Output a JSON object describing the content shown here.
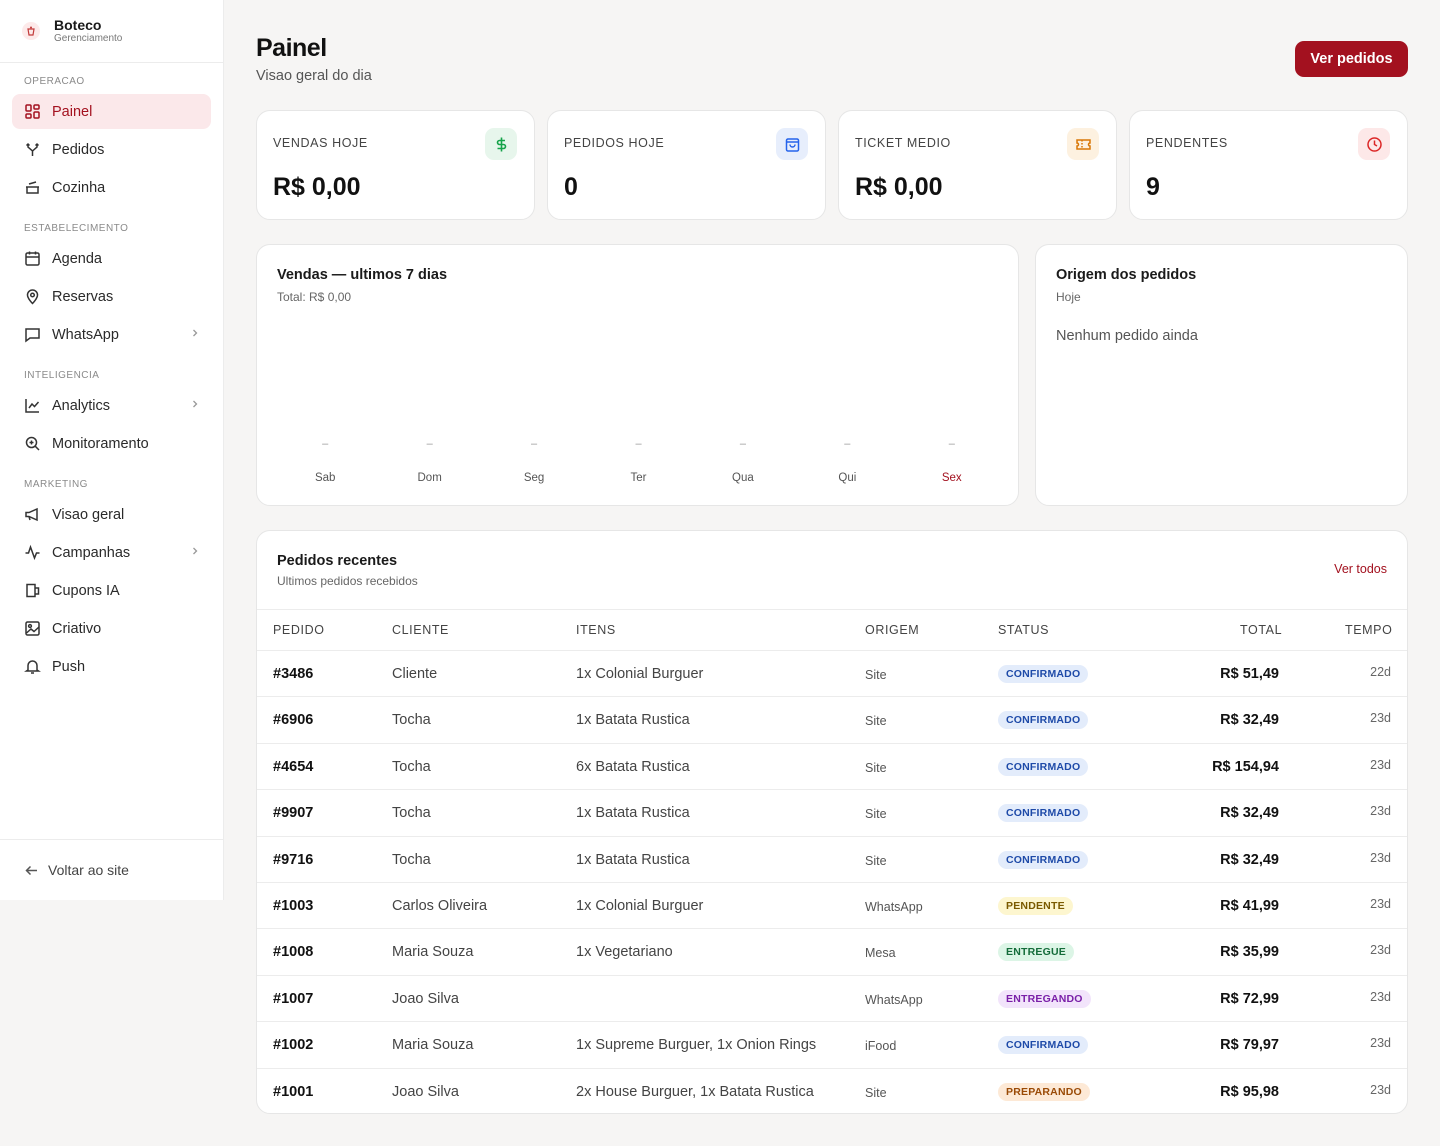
{
  "brand": {
    "name": "Boteco",
    "subtitle": "Gerenciamento"
  },
  "sidebar": {
    "sections": [
      {
        "title": "OPERACAO"
      },
      {
        "title": "ESTABELECIMENTO"
      },
      {
        "title": "INTELIGENCIA"
      },
      {
        "title": "MARKETING"
      }
    ],
    "items": [
      {
        "label": "Painel",
        "icon": "dashboard-icon",
        "active": true
      },
      {
        "label": "Pedidos",
        "icon": "branch-icon"
      },
      {
        "label": "Cozinha",
        "icon": "cooking-pot-icon"
      },
      {
        "label": "Agenda",
        "icon": "calendar-icon"
      },
      {
        "label": "Reservas",
        "icon": "map-pin-icon"
      },
      {
        "label": "WhatsApp",
        "icon": "message-icon",
        "expandable": true
      },
      {
        "label": "Analytics",
        "icon": "line-chart-icon",
        "expandable": true
      },
      {
        "label": "Monitoramento",
        "icon": "zoom-icon"
      },
      {
        "label": "Visao geral",
        "icon": "megaphone-icon"
      },
      {
        "label": "Campanhas",
        "icon": "activity-icon",
        "expandable": true
      },
      {
        "label": "Cupons IA",
        "icon": "coupon-icon"
      },
      {
        "label": "Criativo",
        "icon": "image-icon"
      },
      {
        "label": "Push",
        "icon": "bell-icon"
      }
    ],
    "footer_label": "Voltar ao site"
  },
  "header": {
    "title": "Painel",
    "subtitle": "Visao geral do dia",
    "button_label": "Ver pedidos"
  },
  "stats": [
    {
      "label": "VENDAS HOJE",
      "value": "R$ 0,00",
      "icon": "dollar-icon",
      "color": "#16a34a",
      "bg": "#e7f6ec"
    },
    {
      "label": "PEDIDOS HOJE",
      "value": "0",
      "icon": "shopping-bag-icon",
      "color": "#2563eb",
      "bg": "#e7eefc"
    },
    {
      "label": "TICKET MEDIO",
      "value": "R$ 0,00",
      "icon": "ticket-icon",
      "color": "#d97706",
      "bg": "#fdf1e0"
    },
    {
      "label": "PENDENTES",
      "value": "9",
      "icon": "clock-icon",
      "color": "#dc2626",
      "bg": "#fde8e8"
    }
  ],
  "sales_chart": {
    "title": "Vendas — ultimos 7 dias",
    "subtitle": "Total: R$ 0,00",
    "today_color": "#a3111f"
  },
  "chart_data": {
    "type": "bar",
    "title": "Vendas — ultimos 7 dias",
    "categories": [
      "Sab",
      "Dom",
      "Seg",
      "Ter",
      "Qua",
      "Qui",
      "Sex"
    ],
    "values": [
      0,
      0,
      0,
      0,
      0,
      0,
      0
    ],
    "bar_labels": [
      "–",
      "–",
      "–",
      "–",
      "–",
      "–",
      "–"
    ],
    "highlight_index": 6,
    "grid": false
  },
  "origin": {
    "title": "Origem dos pedidos",
    "subtitle": "Hoje",
    "empty": "Nenhum pedido ainda"
  },
  "orders": {
    "title": "Pedidos recentes",
    "subtitle": "Ultimos pedidos recebidos",
    "link_label": "Ver todos",
    "columns": [
      "PEDIDO",
      "CLIENTE",
      "ITENS",
      "ORIGEM",
      "STATUS",
      "TOTAL",
      "TEMPO"
    ],
    "rows": [
      {
        "id": "#3486",
        "client": "Cliente",
        "items": "1x Colonial Burguer",
        "origin": "Site",
        "status": "CONFIRMADO",
        "total": "R$ 51,49",
        "time": "22d"
      },
      {
        "id": "#6906",
        "client": "Tocha",
        "items": "1x Batata Rustica",
        "origin": "Site",
        "status": "CONFIRMADO",
        "total": "R$ 32,49",
        "time": "23d"
      },
      {
        "id": "#4654",
        "client": "Tocha",
        "items": "6x Batata Rustica",
        "origin": "Site",
        "status": "CONFIRMADO",
        "total": "R$ 154,94",
        "time": "23d"
      },
      {
        "id": "#9907",
        "client": "Tocha",
        "items": "1x Batata Rustica",
        "origin": "Site",
        "status": "CONFIRMADO",
        "total": "R$ 32,49",
        "time": "23d"
      },
      {
        "id": "#9716",
        "client": "Tocha",
        "items": "1x Batata Rustica",
        "origin": "Site",
        "status": "CONFIRMADO",
        "total": "R$ 32,49",
        "time": "23d"
      },
      {
        "id": "#1003",
        "client": "Carlos Oliveira",
        "items": "1x Colonial Burguer",
        "origin": "WhatsApp",
        "status": "PENDENTE",
        "total": "R$ 41,99",
        "time": "23d"
      },
      {
        "id": "#1008",
        "client": "Maria Souza",
        "items": "1x Vegetariano",
        "origin": "Mesa",
        "status": "ENTREGUE",
        "total": "R$ 35,99",
        "time": "23d"
      },
      {
        "id": "#1007",
        "client": "Joao Silva",
        "items": "",
        "origin": "WhatsApp",
        "status": "ENTREGANDO",
        "total": "R$ 72,99",
        "time": "23d"
      },
      {
        "id": "#1002",
        "client": "Maria Souza",
        "items": "1x Supreme Burguer, 1x Onion Rings",
        "origin": "iFood",
        "status": "CONFIRMADO",
        "total": "R$ 79,97",
        "time": "23d"
      },
      {
        "id": "#1001",
        "client": "Joao Silva",
        "items": "2x House Burguer, 1x Batata Rustica",
        "origin": "Site",
        "status": "PREPARANDO",
        "total": "R$ 95,98",
        "time": "23d"
      }
    ],
    "status_colors": {
      "CONFIRMADO": {
        "bg": "#e3ecfb",
        "fg": "#1e4aa8"
      },
      "PENDENTE": {
        "bg": "#fdf6cf",
        "fg": "#7a5a00"
      },
      "ENTREGUE": {
        "bg": "#dcf5e6",
        "fg": "#146c3a"
      },
      "ENTREGANDO": {
        "bg": "#f2e4fb",
        "fg": "#7a1fa8"
      },
      "PREPARANDO": {
        "bg": "#fde9d6",
        "fg": "#9a4a06"
      }
    }
  }
}
